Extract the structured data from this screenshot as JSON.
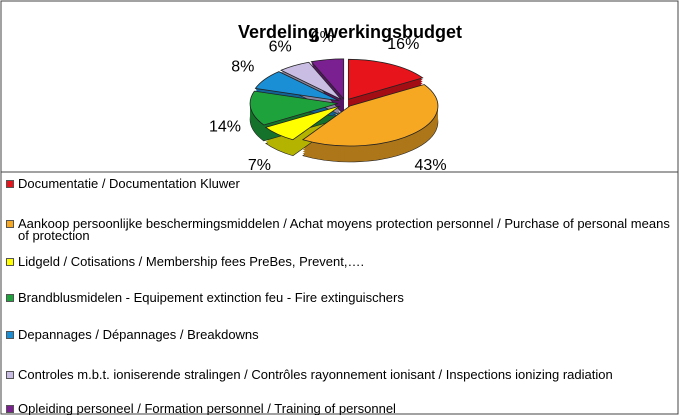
{
  "chart_data": {
    "type": "pie",
    "title": "Verdeling werkingsbudget",
    "categories": [
      "Documentatie / Documentation Kluwer",
      "Aankoop persoonlijke beschermingsmiddelen / Achat moyens protection personnel / Purchase of personal means of protection",
      "Lidgeld / Cotisations / Membership fees  PreBes, Prevent,….",
      "Brandblusmidelen - Equipement extinction feu - Fire extinguischers",
      "Depannages / Dépannages / Breakdowns",
      "Controles m.b.t. ioniserende stralingen / Contrôles rayonnement ionisant / Inspections ionizing radiation",
      "Opleiding personeel / Formation personnel / Training of personnel"
    ],
    "values": [
      16,
      43,
      7,
      14,
      8,
      6,
      6
    ],
    "value_labels": [
      "16%",
      "43%",
      "7%",
      "14%",
      "8%",
      "6%",
      "6%"
    ],
    "colors": [
      "#e8141c",
      "#f7a823",
      "#ffff00",
      "#1ea33c",
      "#1a8fd6",
      "#c9bde3",
      "#7b2090"
    ]
  }
}
